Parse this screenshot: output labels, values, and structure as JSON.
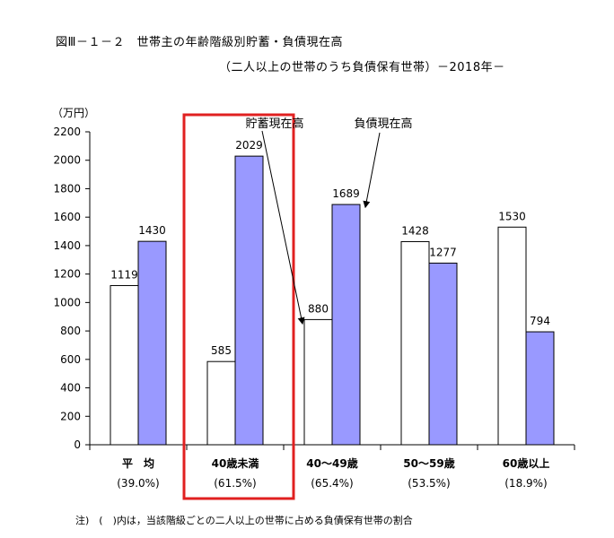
{
  "title": "図Ⅲ－１－２　世帯主の年齢階級別貯蓄・負債現在高",
  "subtitle": "（二人以上の世帯のうち負債保有世帯）－2018年－",
  "unit_label": "（万円）",
  "note": "注)　(　)内は，当該階級ごとの二人以上の世帯に占める負債保有世帯の割合",
  "chart_data": {
    "type": "bar",
    "categories": [
      "平　均",
      "40歳未満",
      "40～49歳",
      "50～59歳",
      "60歳以上"
    ],
    "category_shares": [
      "(39.0%)",
      "(61.5%)",
      "(65.4%)",
      "(53.5%)",
      "(18.9%)"
    ],
    "series": [
      {
        "name": "貯蓄現在高",
        "values": [
          1119,
          585,
          880,
          1428,
          1530
        ],
        "color": "#ffffff"
      },
      {
        "name": "負債現在高",
        "values": [
          1430,
          2029,
          1689,
          1277,
          794
        ],
        "color": "#9999ff"
      }
    ],
    "ylim": [
      0,
      2200
    ],
    "yticks": [
      0,
      200,
      400,
      600,
      800,
      1000,
      1200,
      1400,
      1600,
      1800,
      2000,
      2200
    ],
    "grid": false,
    "legend_placement": "top-center, callout arrows",
    "highlight": {
      "category": "40歳未満",
      "color": "#e02020"
    }
  }
}
